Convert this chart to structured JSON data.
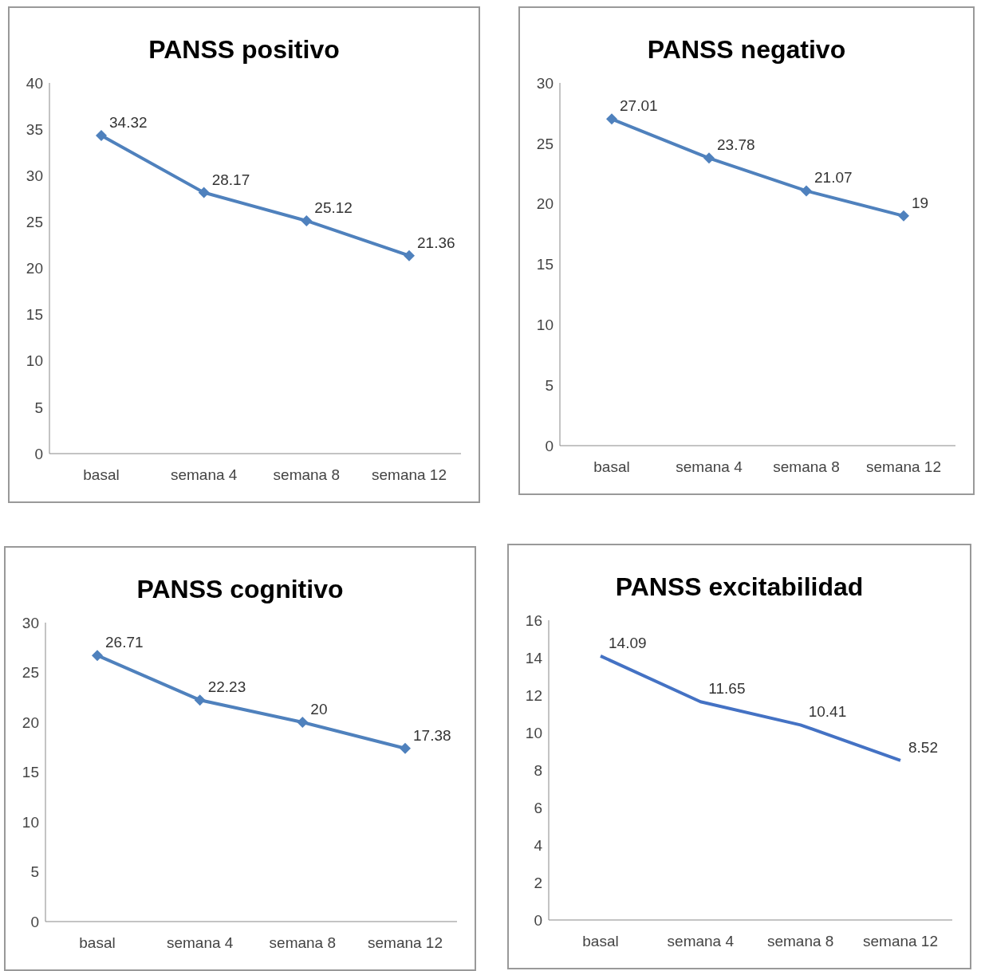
{
  "chart_data": [
    {
      "type": "line",
      "title": "PANSS positivo",
      "categories": [
        "basal",
        "semana 4",
        "semana 8",
        "semana 12"
      ],
      "series": [
        {
          "color": "#4f81bd",
          "values": [
            34.32,
            28.17,
            25.12,
            21.36
          ]
        }
      ],
      "ylim": [
        0,
        40
      ],
      "yticks": [
        0,
        5,
        10,
        15,
        20,
        25,
        30,
        35,
        40
      ],
      "data_labels": true,
      "marker": "diamond",
      "grid": false,
      "legend": false
    },
    {
      "type": "line",
      "title": "PANSS negativo",
      "categories": [
        "basal",
        "semana 4",
        "semana 8",
        "semana 12"
      ],
      "series": [
        {
          "color": "#4f81bd",
          "values": [
            27.01,
            23.78,
            21.07,
            19
          ]
        }
      ],
      "ylim": [
        0,
        30
      ],
      "yticks": [
        0,
        5,
        10,
        15,
        20,
        25,
        30
      ],
      "data_labels": true,
      "marker": "diamond",
      "grid": false,
      "legend": false
    },
    {
      "type": "line",
      "title": "PANSS cognitivo",
      "categories": [
        "basal",
        "semana 4",
        "semana 8",
        "semana 12"
      ],
      "series": [
        {
          "color": "#4f81bd",
          "values": [
            26.71,
            22.23,
            20,
            17.38
          ]
        }
      ],
      "ylim": [
        0,
        30
      ],
      "yticks": [
        0,
        5,
        10,
        15,
        20,
        25,
        30
      ],
      "data_labels": true,
      "marker": "diamond",
      "grid": false,
      "legend": false
    },
    {
      "type": "line",
      "title": "PANSS  excitabilidad",
      "categories": [
        "basal",
        "semana 4",
        "semana 8",
        "semana 12"
      ],
      "series": [
        {
          "color": "#4472c4",
          "values": [
            14.09,
            11.65,
            10.41,
            8.52
          ]
        }
      ],
      "ylim": [
        0,
        16
      ],
      "yticks": [
        0,
        2,
        4,
        6,
        8,
        10,
        12,
        14,
        16
      ],
      "data_labels": true,
      "marker": "none",
      "grid": false,
      "legend": false
    }
  ]
}
